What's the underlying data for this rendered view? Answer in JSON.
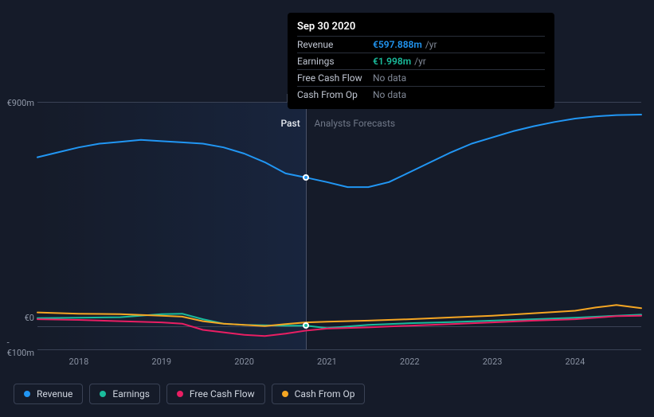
{
  "chart": {
    "type": "line",
    "background_color": "#151b29",
    "grid_color": "#3a4255",
    "y_axis": {
      "min": -100,
      "max": 900,
      "ticks": [
        {
          "value": 900,
          "label": "€900m"
        },
        {
          "value": 0,
          "label": "€0"
        },
        {
          "value": -100,
          "label": "-€100m"
        }
      ]
    },
    "x_axis": {
      "min": 2017.5,
      "max": 2024.8,
      "divider": 2020.75,
      "ticks": [
        2018,
        2019,
        2020,
        2021,
        2022,
        2023,
        2024
      ]
    },
    "regions": {
      "past_label": "Past",
      "forecast_label": "Analysts Forecasts"
    },
    "series": [
      {
        "id": "revenue",
        "label": "Revenue",
        "color": "#2196f3",
        "line_width": 2,
        "points": [
          [
            2017.5,
            680
          ],
          [
            2017.75,
            700
          ],
          [
            2018.0,
            720
          ],
          [
            2018.25,
            735
          ],
          [
            2018.5,
            742
          ],
          [
            2018.75,
            750
          ],
          [
            2019.0,
            745
          ],
          [
            2019.25,
            740
          ],
          [
            2019.5,
            735
          ],
          [
            2019.75,
            720
          ],
          [
            2020.0,
            695
          ],
          [
            2020.25,
            660
          ],
          [
            2020.5,
            615
          ],
          [
            2020.75,
            598
          ],
          [
            2021.0,
            580
          ],
          [
            2021.25,
            560
          ],
          [
            2021.5,
            560
          ],
          [
            2021.75,
            580
          ],
          [
            2022.0,
            620
          ],
          [
            2022.25,
            660
          ],
          [
            2022.5,
            700
          ],
          [
            2022.75,
            735
          ],
          [
            2023.0,
            760
          ],
          [
            2023.25,
            785
          ],
          [
            2023.5,
            805
          ],
          [
            2023.75,
            822
          ],
          [
            2024.0,
            836
          ],
          [
            2024.25,
            845
          ],
          [
            2024.5,
            850
          ],
          [
            2024.8,
            852
          ]
        ]
      },
      {
        "id": "earnings",
        "label": "Earnings",
        "color": "#1abc9c",
        "line_width": 2,
        "points": [
          [
            2017.5,
            32
          ],
          [
            2018.0,
            34
          ],
          [
            2018.5,
            36
          ],
          [
            2019.0,
            48
          ],
          [
            2019.25,
            50
          ],
          [
            2019.5,
            28
          ],
          [
            2019.75,
            10
          ],
          [
            2020.0,
            5
          ],
          [
            2020.5,
            2
          ],
          [
            2020.75,
            2
          ],
          [
            2021.0,
            -8
          ],
          [
            2021.5,
            5
          ],
          [
            2022.0,
            12
          ],
          [
            2022.5,
            16
          ],
          [
            2023.0,
            22
          ],
          [
            2023.5,
            28
          ],
          [
            2024.0,
            34
          ],
          [
            2024.5,
            42
          ],
          [
            2024.8,
            46
          ]
        ]
      },
      {
        "id": "fcf",
        "label": "Free Cash Flow",
        "color": "#e91e63",
        "line_width": 2,
        "points": [
          [
            2017.5,
            28
          ],
          [
            2018.0,
            25
          ],
          [
            2018.5,
            20
          ],
          [
            2019.0,
            15
          ],
          [
            2019.25,
            10
          ],
          [
            2019.5,
            -15
          ],
          [
            2019.75,
            -25
          ],
          [
            2020.0,
            -35
          ],
          [
            2020.25,
            -40
          ],
          [
            2020.5,
            -30
          ],
          [
            2020.75,
            -18
          ],
          [
            2021.0,
            -10
          ],
          [
            2021.5,
            -5
          ],
          [
            2022.0,
            2
          ],
          [
            2022.5,
            8
          ],
          [
            2023.0,
            15
          ],
          [
            2023.5,
            22
          ],
          [
            2024.0,
            28
          ],
          [
            2024.5,
            40
          ],
          [
            2024.8,
            42
          ]
        ]
      },
      {
        "id": "cfo",
        "label": "Cash From Op",
        "color": "#f5a623",
        "line_width": 2,
        "points": [
          [
            2017.5,
            55
          ],
          [
            2018.0,
            50
          ],
          [
            2018.5,
            48
          ],
          [
            2019.0,
            42
          ],
          [
            2019.25,
            38
          ],
          [
            2019.5,
            20
          ],
          [
            2019.75,
            10
          ],
          [
            2020.0,
            5
          ],
          [
            2020.25,
            0
          ],
          [
            2020.5,
            8
          ],
          [
            2020.75,
            15
          ],
          [
            2021.0,
            18
          ],
          [
            2021.5,
            22
          ],
          [
            2022.0,
            28
          ],
          [
            2022.5,
            35
          ],
          [
            2023.0,
            42
          ],
          [
            2023.5,
            52
          ],
          [
            2024.0,
            62
          ],
          [
            2024.25,
            75
          ],
          [
            2024.5,
            85
          ],
          [
            2024.8,
            72
          ]
        ]
      }
    ],
    "highlight": {
      "x": 2020.75,
      "markers": [
        {
          "series": "revenue",
          "y": 598,
          "color": "#2196f3"
        },
        {
          "series": "earnings",
          "y": 2,
          "color": "#1abc9c"
        }
      ]
    }
  },
  "tooltip": {
    "title": "Sep 30 2020",
    "rows": [
      {
        "label": "Revenue",
        "value": "€597.888m",
        "unit": "/yr",
        "color": "#2196f3"
      },
      {
        "label": "Earnings",
        "value": "€1.998m",
        "unit": "/yr",
        "color": "#1abc9c"
      },
      {
        "label": "Free Cash Flow",
        "nodata": "No data"
      },
      {
        "label": "Cash From Op",
        "nodata": "No data"
      }
    ]
  },
  "legend": [
    {
      "id": "revenue",
      "label": "Revenue",
      "color": "#2196f3"
    },
    {
      "id": "earnings",
      "label": "Earnings",
      "color": "#1abc9c"
    },
    {
      "id": "fcf",
      "label": "Free Cash Flow",
      "color": "#e91e63"
    },
    {
      "id": "cfo",
      "label": "Cash From Op",
      "color": "#f5a623"
    }
  ]
}
